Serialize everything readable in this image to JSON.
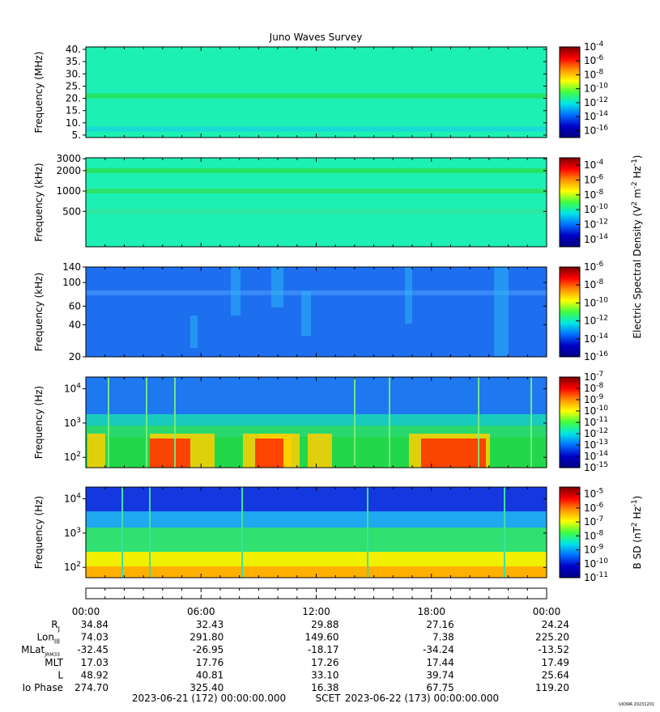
{
  "chart_data": {
    "type": "heatmap",
    "title": "Juno Waves Survey",
    "time_axis": {
      "tick_labels": [
        "00:00",
        "06:00",
        "12:00",
        "18:00",
        "00:00"
      ],
      "start_label": "2023-06-21 (172) 00:00:00.000",
      "middle_label": "SCET",
      "end_label": "2023-06-22 (173) 00:00:00.000"
    },
    "panels": [
      {
        "ylabel": "Frequency (MHz)",
        "ylim": [
          4,
          41
        ],
        "y_scale": "linear",
        "y_ticks": [
          {
            "value": 5,
            "label": "5."
          },
          {
            "value": 10,
            "label": "10."
          },
          {
            "value": 15,
            "label": "15."
          },
          {
            "value": 20,
            "label": "20."
          },
          {
            "value": 25,
            "label": "25."
          },
          {
            "value": 30,
            "label": "30."
          },
          {
            "value": 35,
            "label": "35."
          },
          {
            "value": 40,
            "label": "40."
          }
        ],
        "colorbar": {
          "exponents": [
            -4,
            -6,
            -8,
            -10,
            -12,
            -14,
            -16
          ],
          "range": [
            -17,
            -4
          ]
        },
        "background_color": "#1cf0b4",
        "bands": [
          {
            "y": 21,
            "color": "#28e05a"
          },
          {
            "y": 7.5,
            "color": "#18d8dc"
          }
        ]
      },
      {
        "ylabel": "Frequency (kHz)",
        "ylim": [
          150,
          3100
        ],
        "y_scale": "log",
        "y_ticks": [
          {
            "value": 500,
            "label": "500"
          },
          {
            "value": 1000,
            "label": "1000"
          },
          {
            "value": 2000,
            "label": "2000"
          },
          {
            "value": 3000,
            "label": "3000"
          }
        ],
        "colorbar": {
          "exponents": [
            -4,
            -6,
            -8,
            -10,
            -12,
            -14
          ],
          "range": [
            -15,
            -3
          ]
        },
        "background_color": "#1cf0b4",
        "bands": [
          {
            "y": 2000,
            "color": "#28e05a"
          },
          {
            "y": 1000,
            "color": "#2ee065"
          },
          {
            "y": 500,
            "color": "#30e6a0"
          }
        ]
      },
      {
        "ylabel": "Frequency (kHz)",
        "ylim": [
          20,
          140
        ],
        "y_scale": "log",
        "y_ticks": [
          {
            "value": 20,
            "label": "20"
          },
          {
            "value": 40,
            "label": "40"
          },
          {
            "value": 60,
            "label": "60"
          },
          {
            "value": 100,
            "label": "100"
          },
          {
            "value": 140,
            "label": "140"
          }
        ],
        "colorbar": {
          "exponents": [
            -6,
            -8,
            -10,
            -12,
            -14,
            -16
          ],
          "range": [
            -16,
            -6
          ]
        },
        "background_color": "#1e6ef0",
        "bands": [
          {
            "y": 80,
            "color": "#3c8cf6"
          }
        ]
      },
      {
        "ylabel": "Frequency (Hz)",
        "ylim": [
          50,
          22000
        ],
        "y_scale": "log",
        "y_ticks": [
          {
            "value": 100,
            "label": "10",
            "exp": "2"
          },
          {
            "value": 1000,
            "label": "10",
            "exp": "3"
          },
          {
            "value": 10000,
            "label": "10",
            "exp": "4"
          }
        ],
        "colorbar": {
          "exponents": [
            -7,
            -8,
            -9,
            -10,
            -11,
            -12,
            -13,
            -14,
            -15
          ],
          "range": [
            -15,
            -7
          ]
        },
        "background_color": "#22d84a"
      },
      {
        "ylabel": "Frequency (Hz)",
        "ylim": [
          50,
          22000
        ],
        "y_scale": "log",
        "y_ticks": [
          {
            "value": 100,
            "label": "10",
            "exp": "2"
          },
          {
            "value": 1000,
            "label": "10",
            "exp": "3"
          },
          {
            "value": 10000,
            "label": "10",
            "exp": "4"
          }
        ],
        "colorbar": {
          "exponents": [
            -5,
            -6,
            -7,
            -8,
            -9,
            -10,
            -11
          ],
          "range": [
            -11,
            -4.5
          ]
        },
        "background_color": "#3ce03c"
      }
    ],
    "colorbar_title_electric": "Electric Spectral Density (V",
    "colorbar_title_magnetic": "B SD (nT",
    "ephemeris": {
      "rows": [
        {
          "label": "R",
          "sub": "J",
          "values": [
            "34.84",
            "32.43",
            "29.88",
            "27.16",
            "24.24"
          ]
        },
        {
          "label": "Lon",
          "sub": "III",
          "values": [
            "74.03",
            "291.80",
            "149.60",
            "7.38",
            "225.20"
          ]
        },
        {
          "label": "MLat",
          "sub": "JRM33",
          "values": [
            "-32.45",
            "-26.95",
            "-18.17",
            "-34.24",
            "-13.52"
          ]
        },
        {
          "label": "MLT",
          "sub": "",
          "values": [
            "17.03",
            "17.76",
            "17.26",
            "17.44",
            "17.49"
          ]
        },
        {
          "label": "L",
          "sub": "",
          "values": [
            "48.92",
            "40.81",
            "33.10",
            "39.74",
            "25.64"
          ]
        },
        {
          "label": "Io Phase",
          "sub": "",
          "values": [
            "274.70",
            "325.40",
            "16.38",
            "67.75",
            "119.20"
          ]
        }
      ]
    },
    "footer_stamp": "UIOWA 20231201"
  }
}
